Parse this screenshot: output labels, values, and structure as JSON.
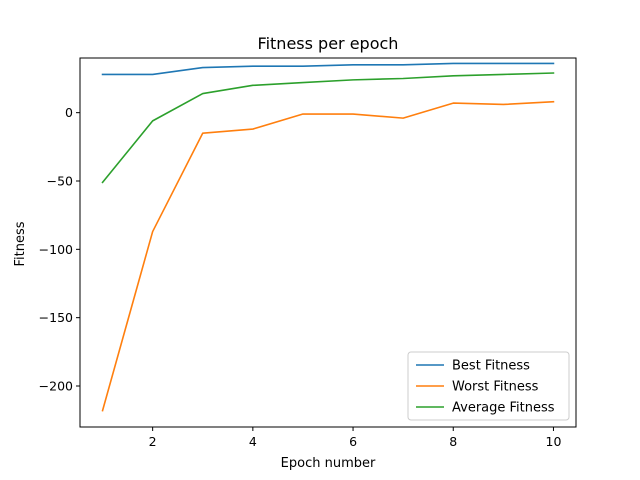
{
  "chart_data": {
    "type": "line",
    "title": "Fitness per epoch",
    "xlabel": "Epoch number",
    "ylabel": "Fitness",
    "xlim": [
      0.55,
      10.45
    ],
    "ylim": [
      -230,
      40
    ],
    "xticks": [
      2,
      4,
      6,
      8,
      10
    ],
    "yticks": [
      0,
      -50,
      -100,
      -150,
      -200
    ],
    "ytick_labels": [
      "0",
      "−50",
      "−100",
      "−150",
      "−200"
    ],
    "x": [
      1,
      2,
      3,
      4,
      5,
      6,
      7,
      8,
      9,
      10
    ],
    "series": [
      {
        "name": "Best Fitness",
        "color": "#1f77b4",
        "values": [
          28,
          28,
          33,
          34,
          34,
          35,
          35,
          36,
          36,
          36
        ]
      },
      {
        "name": "Worst Fitness",
        "color": "#ff7f0e",
        "values": [
          -218,
          -87,
          -15,
          -12,
          -1,
          -1,
          -4,
          7,
          6,
          8
        ]
      },
      {
        "name": "Average Fitness",
        "color": "#2ca02c",
        "values": [
          -51,
          -6,
          14,
          20,
          22,
          24,
          25,
          27,
          28,
          29
        ]
      }
    ],
    "grid": false,
    "legend_position": "lower-right"
  }
}
